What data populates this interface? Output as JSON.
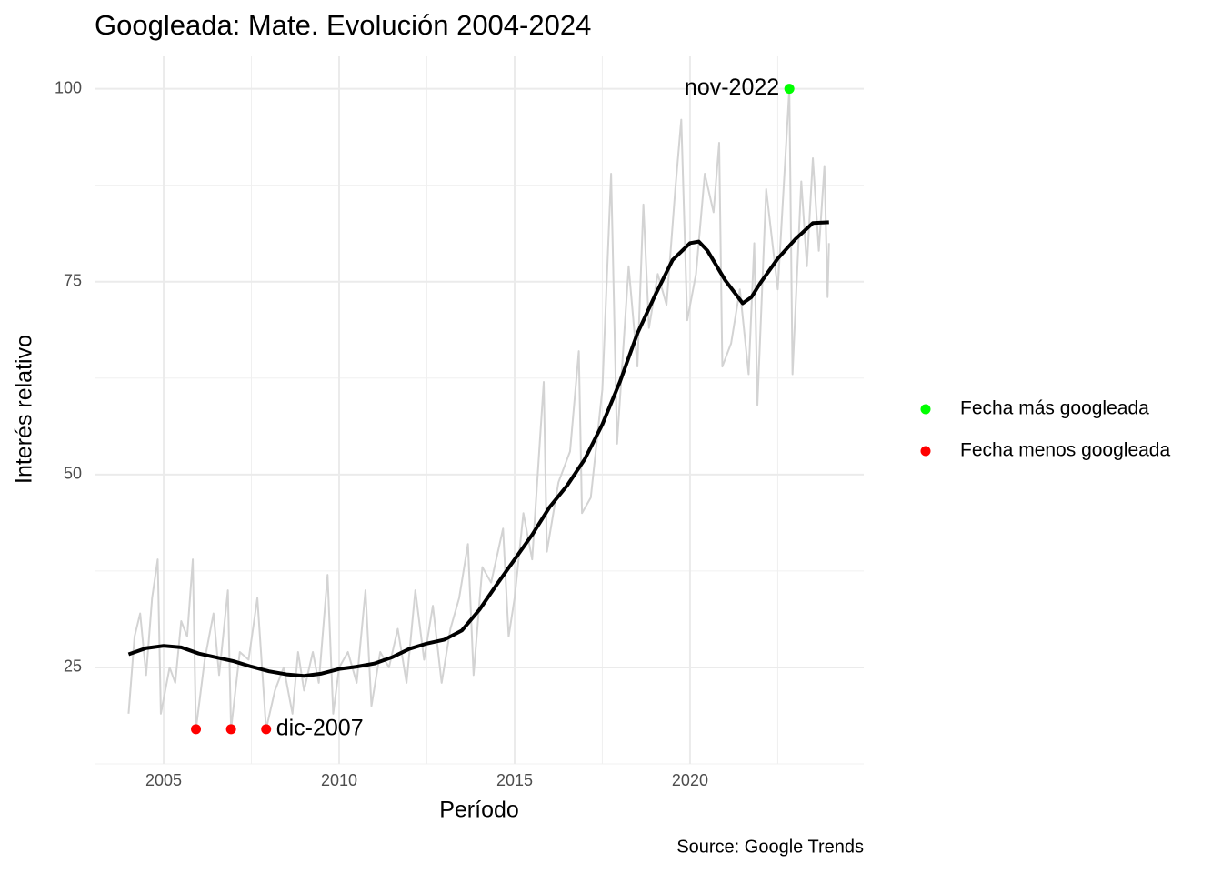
{
  "chart_data": {
    "type": "line",
    "title": "Googleada: Mate. Evolución 2004-2024",
    "x_label": "Período",
    "y_label": "Interés relativo",
    "caption": "Source: Google Trends",
    "xlim": [
      2003.03,
      2024.95
    ],
    "ylim": [
      12.5,
      104.2
    ],
    "xticks": [
      2005,
      2010,
      2015,
      2020
    ],
    "yticks": [
      25,
      50,
      75,
      100
    ],
    "grid": true,
    "legend_position": "right",
    "series": [
      {
        "color": "#d3d3d3",
        "x": [
          2004.0,
          2004.17,
          2004.33,
          2004.5,
          2004.67,
          2004.83,
          2004.92,
          2005.17,
          2005.33,
          2005.5,
          2005.67,
          2005.83,
          2005.92,
          2006.17,
          2006.42,
          2006.58,
          2006.83,
          2006.92,
          2007.17,
          2007.42,
          2007.67,
          2007.92,
          2008.17,
          2008.42,
          2008.67,
          2008.83,
          2009.0,
          2009.25,
          2009.42,
          2009.67,
          2009.83,
          2010.0,
          2010.25,
          2010.5,
          2010.75,
          2010.92,
          2011.17,
          2011.42,
          2011.67,
          2011.92,
          2012.17,
          2012.42,
          2012.67,
          2012.92,
          2013.17,
          2013.42,
          2013.67,
          2013.83,
          2014.08,
          2014.33,
          2014.67,
          2014.83,
          2015.0,
          2015.25,
          2015.5,
          2015.83,
          2015.92,
          2016.25,
          2016.58,
          2016.83,
          2016.92,
          2017.17,
          2017.5,
          2017.75,
          2017.92,
          2018.25,
          2018.5,
          2018.67,
          2018.83,
          2019.08,
          2019.33,
          2019.58,
          2019.75,
          2019.92,
          2020.17,
          2020.42,
          2020.67,
          2020.83,
          2020.92,
          2021.17,
          2021.42,
          2021.67,
          2021.83,
          2021.92,
          2022.17,
          2022.5,
          2022.83,
          2022.92,
          2023.17,
          2023.33,
          2023.5,
          2023.67,
          2023.83,
          2023.92,
          2023.96
        ],
        "values": [
          19,
          29,
          32,
          24,
          34,
          39,
          19,
          25,
          23,
          31,
          29,
          39,
          17,
          26,
          32,
          24,
          35,
          17,
          27,
          26,
          34,
          17,
          22,
          25,
          19,
          27,
          22,
          27,
          23,
          37,
          19,
          25,
          27,
          23,
          35,
          20,
          27,
          25,
          30,
          23,
          35,
          26,
          33,
          23,
          30,
          34,
          41,
          24,
          38,
          36,
          43,
          29,
          34,
          45,
          39,
          62,
          40,
          49,
          53,
          66,
          45,
          47,
          61,
          89,
          54,
          77,
          64,
          85,
          69,
          76,
          72,
          87,
          96,
          70,
          76,
          89,
          84,
          93,
          64,
          67,
          74,
          63,
          80,
          59,
          87,
          74,
          100,
          63,
          88,
          77,
          91,
          79,
          90,
          73,
          80
        ]
      },
      {
        "color": "#000000",
        "x": [
          2004.0,
          2004.5,
          2005.0,
          2005.5,
          2006.0,
          2006.5,
          2007.0,
          2007.5,
          2008.0,
          2008.5,
          2009.0,
          2009.5,
          2010.0,
          2010.5,
          2011.0,
          2011.5,
          2012.0,
          2012.5,
          2013.0,
          2013.5,
          2014.0,
          2014.5,
          2015.0,
          2015.5,
          2016.0,
          2016.5,
          2017.0,
          2017.5,
          2018.0,
          2018.5,
          2019.0,
          2019.5,
          2020.0,
          2020.25,
          2020.5,
          2021.0,
          2021.5,
          2021.75,
          2022.0,
          2022.5,
          2023.0,
          2023.5,
          2023.96
        ],
        "values": [
          26.7,
          27.5,
          27.8,
          27.6,
          26.8,
          26.3,
          25.8,
          25.1,
          24.5,
          24.1,
          23.9,
          24.2,
          24.8,
          25.1,
          25.5,
          26.3,
          27.4,
          28.1,
          28.6,
          29.8,
          32.5,
          35.8,
          39.0,
          42.2,
          45.8,
          48.6,
          52.0,
          56.5,
          62.0,
          68.3,
          73.2,
          77.8,
          80.0,
          80.2,
          79.0,
          75.2,
          72.2,
          73.0,
          74.8,
          78.0,
          80.5,
          82.6,
          82.7
        ]
      }
    ],
    "points": [
      {
        "name": "Fecha más googleada",
        "color": "#00ff00",
        "x": [
          2022.83
        ],
        "values": [
          100
        ]
      },
      {
        "name": "Fecha menos googleada",
        "color": "#ff0000",
        "x": [
          2005.92,
          2006.92,
          2007.92
        ],
        "values": [
          17,
          17,
          17
        ]
      }
    ],
    "annotations": [
      {
        "text": "nov-2022",
        "x": 2022.83,
        "y": 100
      },
      {
        "text": "dic-2007",
        "x": 2007.92,
        "y": 17
      }
    ]
  }
}
